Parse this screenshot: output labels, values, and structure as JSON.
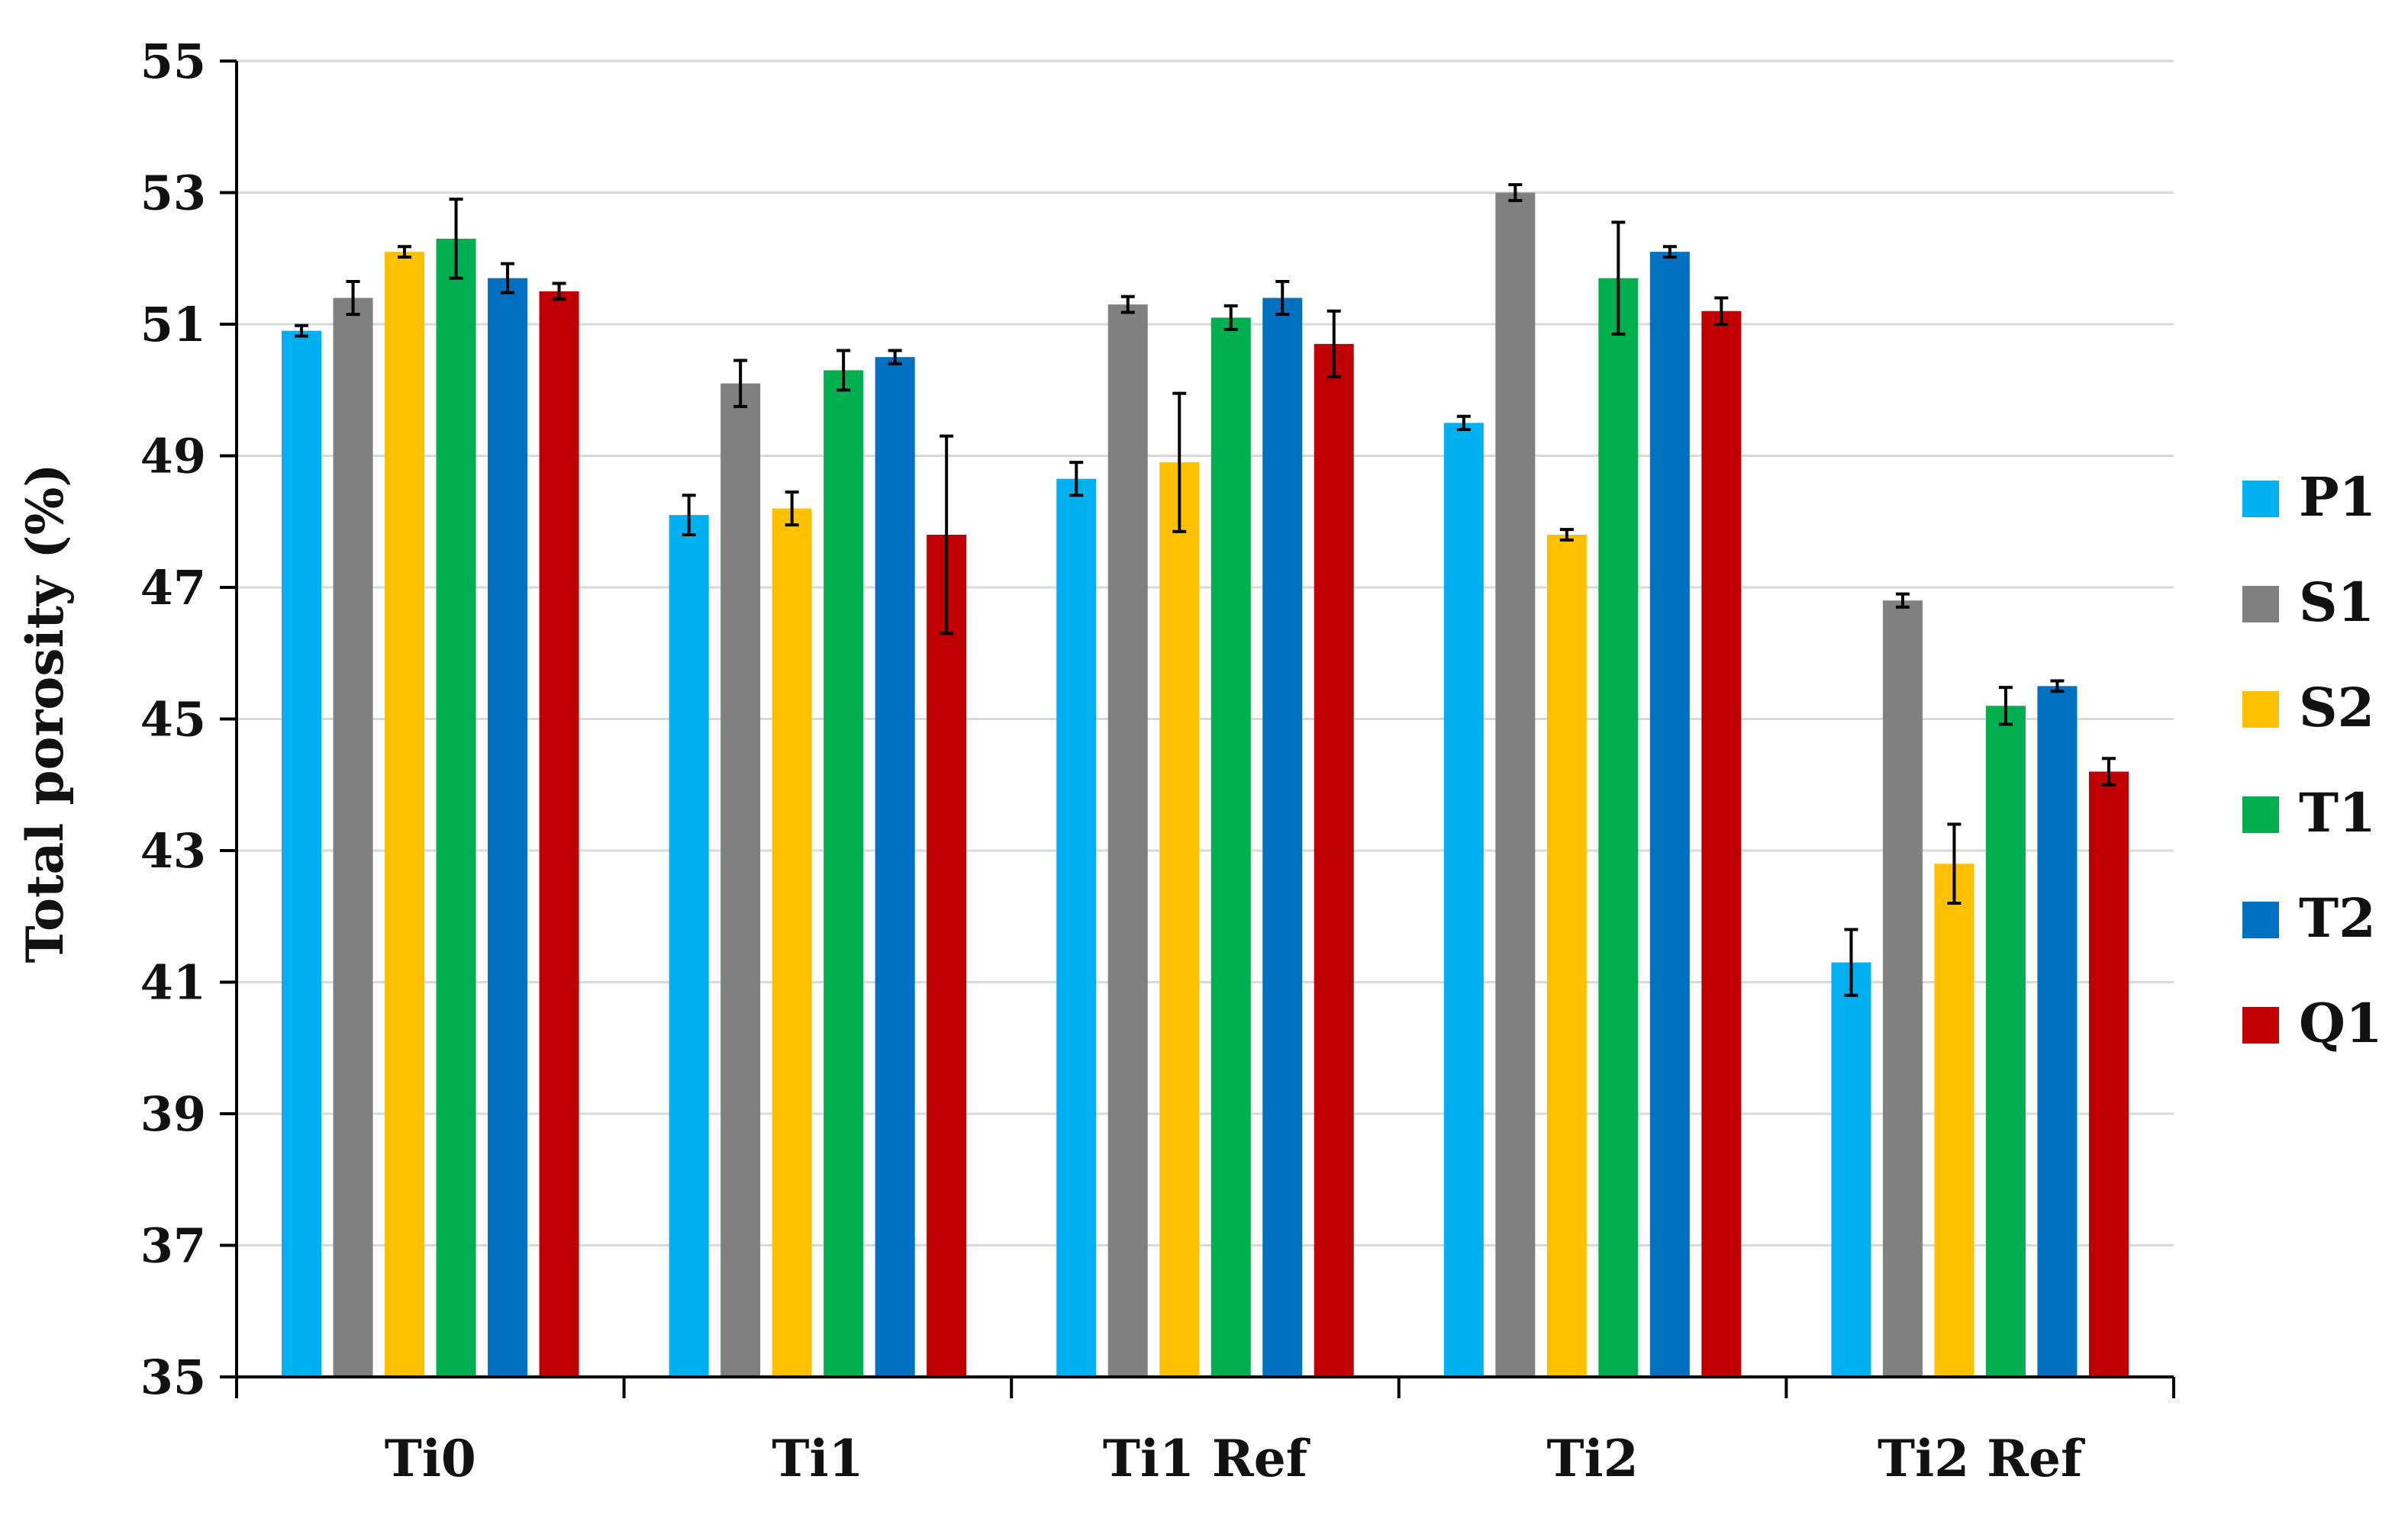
{
  "chart_data": {
    "type": "bar",
    "title": "",
    "xlabel": "",
    "ylabel": "Total porosity (%)",
    "ylim": [
      35,
      55
    ],
    "yticks": [
      35,
      37,
      39,
      41,
      43,
      45,
      47,
      49,
      51,
      53,
      55
    ],
    "grid": true,
    "legend_position": "right",
    "error_bars": true,
    "categories": [
      "Ti0",
      "Ti1",
      "Ti1 Ref",
      "Ti2",
      "Ti2 Ref"
    ],
    "series": [
      {
        "name": "P1",
        "color": "#00B0F0",
        "values": [
          50.9,
          48.1,
          48.65,
          49.5,
          41.3
        ],
        "errors": [
          0.08,
          0.3,
          0.25,
          0.1,
          0.5
        ]
      },
      {
        "name": "S1",
        "color": "#808080",
        "values": [
          51.4,
          50.1,
          51.3,
          53.0,
          46.8
        ],
        "errors": [
          0.25,
          0.35,
          0.12,
          0.12,
          0.1
        ]
      },
      {
        "name": "S2",
        "color": "#FFC000",
        "values": [
          52.1,
          48.2,
          48.9,
          47.8,
          42.8
        ],
        "errors": [
          0.08,
          0.25,
          1.05,
          0.08,
          0.6
        ]
      },
      {
        "name": "T1",
        "color": "#00B050",
        "values": [
          52.3,
          50.3,
          51.1,
          51.7,
          45.2
        ],
        "errors": [
          0.6,
          0.3,
          0.18,
          0.85,
          0.28
        ]
      },
      {
        "name": "T2",
        "color": "#0070C0",
        "values": [
          51.7,
          50.5,
          51.4,
          52.1,
          45.5
        ],
        "errors": [
          0.22,
          0.1,
          0.25,
          0.08,
          0.08
        ]
      },
      {
        "name": "Q1",
        "color": "#C00000",
        "values": [
          51.5,
          47.8,
          50.7,
          51.2,
          44.2
        ],
        "errors": [
          0.12,
          1.5,
          0.5,
          0.2,
          0.2
        ]
      }
    ]
  }
}
